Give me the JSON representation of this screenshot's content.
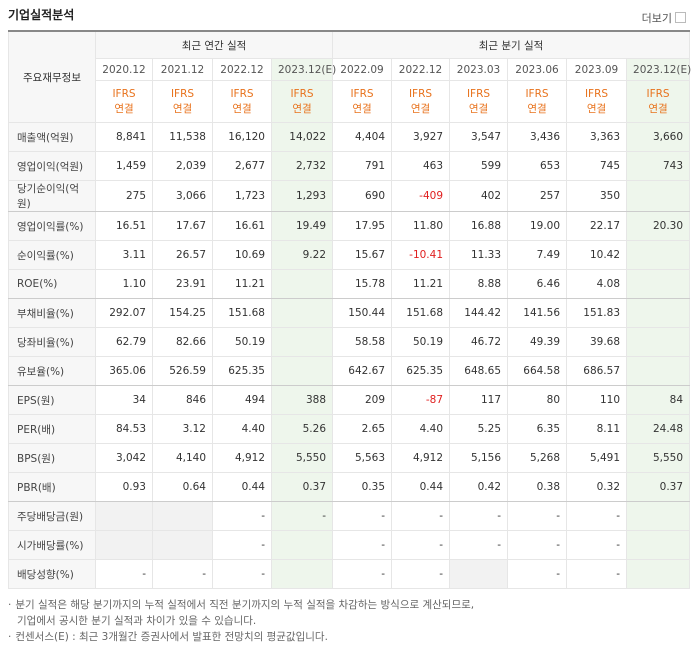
{
  "header": {
    "title": "기업실적분석",
    "more": "더보기"
  },
  "table": {
    "corner": "주요재무정보",
    "groups": [
      {
        "label": "최근 연간 실적",
        "span": 4
      },
      {
        "label": "최근 분기 실적",
        "span": 6
      }
    ],
    "periods": [
      "2020.12",
      "2021.12",
      "2022.12",
      "2023.12(E)",
      "2022.09",
      "2022.12",
      "2023.03",
      "2023.06",
      "2023.09",
      "2023.12(E)"
    ],
    "basis": [
      [
        "IFRS",
        "연결"
      ],
      [
        "IFRS",
        "연결"
      ],
      [
        "IFRS",
        "연결"
      ],
      [
        "IFRS",
        "연결"
      ],
      [
        "IFRS",
        "연결"
      ],
      [
        "IFRS",
        "연결"
      ],
      [
        "IFRS",
        "연결"
      ],
      [
        "IFRS",
        "연결"
      ],
      [
        "IFRS",
        "연결"
      ],
      [
        "IFRS",
        "연결"
      ]
    ],
    "highlight_columns": [
      3,
      9
    ],
    "group_breaks": [
      2,
      5,
      8,
      12
    ],
    "rows": [
      {
        "label": "매출액(억원)",
        "cells": [
          "8,841",
          "11,538",
          "16,120",
          "14,022",
          "4,404",
          "3,927",
          "3,547",
          "3,436",
          "3,363",
          "3,660"
        ]
      },
      {
        "label": "영업이익(억원)",
        "cells": [
          "1,459",
          "2,039",
          "2,677",
          "2,732",
          "791",
          "463",
          "599",
          "653",
          "745",
          "743"
        ]
      },
      {
        "label": "당기순이익(억원)",
        "cells": [
          "275",
          "3,066",
          "1,723",
          "1,293",
          "690",
          "-409",
          "402",
          "257",
          "350",
          null
        ]
      },
      {
        "label": "영업이익률(%)",
        "cells": [
          "16.51",
          "17.67",
          "16.61",
          "19.49",
          "17.95",
          "11.80",
          "16.88",
          "19.00",
          "22.17",
          "20.30"
        ]
      },
      {
        "label": "순이익률(%)",
        "cells": [
          "3.11",
          "26.57",
          "10.69",
          "9.22",
          "15.67",
          "-10.41",
          "11.33",
          "7.49",
          "10.42",
          null
        ]
      },
      {
        "label": "ROE(%)",
        "cells": [
          "1.10",
          "23.91",
          "11.21",
          null,
          "15.78",
          "11.21",
          "8.88",
          "6.46",
          "4.08",
          null
        ]
      },
      {
        "label": "부채비율(%)",
        "cells": [
          "292.07",
          "154.25",
          "151.68",
          null,
          "150.44",
          "151.68",
          "144.42",
          "141.56",
          "151.83",
          null
        ]
      },
      {
        "label": "당좌비율(%)",
        "cells": [
          "62.79",
          "82.66",
          "50.19",
          null,
          "58.58",
          "50.19",
          "46.72",
          "49.39",
          "39.68",
          null
        ]
      },
      {
        "label": "유보율(%)",
        "cells": [
          "365.06",
          "526.59",
          "625.35",
          null,
          "642.67",
          "625.35",
          "648.65",
          "664.58",
          "686.57",
          null
        ]
      },
      {
        "label": "EPS(원)",
        "cells": [
          "34",
          "846",
          "494",
          "388",
          "209",
          "-87",
          "117",
          "80",
          "110",
          "84"
        ]
      },
      {
        "label": "PER(배)",
        "cells": [
          "84.53",
          "3.12",
          "4.40",
          "5.26",
          "2.65",
          "4.40",
          "5.25",
          "6.35",
          "8.11",
          "24.48"
        ]
      },
      {
        "label": "BPS(원)",
        "cells": [
          "3,042",
          "4,140",
          "4,912",
          "5,550",
          "5,563",
          "4,912",
          "5,156",
          "5,268",
          "5,491",
          "5,550"
        ]
      },
      {
        "label": "PBR(배)",
        "cells": [
          "0.93",
          "0.64",
          "0.44",
          "0.37",
          "0.35",
          "0.44",
          "0.42",
          "0.38",
          "0.32",
          "0.37"
        ]
      },
      {
        "label": "주당배당금(원)",
        "cells": [
          null,
          null,
          "-",
          "-",
          "-",
          "-",
          "-",
          "-",
          "-",
          null
        ]
      },
      {
        "label": "시가배당률(%)",
        "cells": [
          null,
          null,
          "-",
          null,
          "-",
          "-",
          "-",
          "-",
          "-",
          null
        ]
      },
      {
        "label": "배당성향(%)",
        "cells": [
          "-",
          "-",
          "-",
          null,
          "-",
          "-",
          null,
          "-",
          "-",
          null
        ]
      }
    ]
  },
  "notes": [
    "분기 실적은 해당 분기까지의 누적 실적에서 직전 분기까지의 누적 실적을 차감하는 방식으로 계산되므로,",
    "기업에서 공시한 분기 실적과 차이가 있을 수 있습니다.",
    "컨센서스(E) : 최근 3개월간 증권사에서 발표한 전망치의 평균값입니다."
  ]
}
